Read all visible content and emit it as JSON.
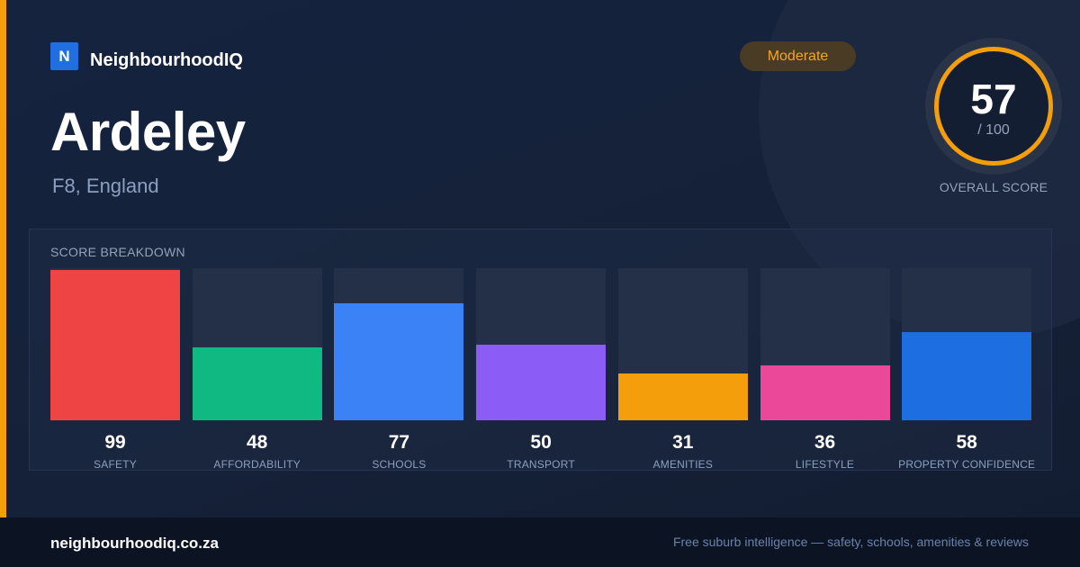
{
  "brand": {
    "logo_letter": "N",
    "name": "NeighbourhoodIQ"
  },
  "place": {
    "name": "Ardeley",
    "region": "F8, England"
  },
  "rating_badge": "Moderate",
  "overall": {
    "value": "57",
    "max": "/ 100",
    "label": "OVERALL SCORE",
    "ring_color": "#f59e0b"
  },
  "breakdown": {
    "title": "SCORE BREAKDOWN",
    "max": 100,
    "items": [
      {
        "label": "SAFETY",
        "value": 99,
        "value_text": "99",
        "color": "#ef4444"
      },
      {
        "label": "AFFORDABILITY",
        "value": 48,
        "value_text": "48",
        "color": "#10b981"
      },
      {
        "label": "SCHOOLS",
        "value": 77,
        "value_text": "77",
        "color": "#3b82f6"
      },
      {
        "label": "TRANSPORT",
        "value": 50,
        "value_text": "50",
        "color": "#8b5cf6"
      },
      {
        "label": "AMENITIES",
        "value": 31,
        "value_text": "31",
        "color": "#f59e0b"
      },
      {
        "label": "LIFESTYLE",
        "value": 36,
        "value_text": "36",
        "color": "#ec4899"
      },
      {
        "label": "PROPERTY CONFIDENCE",
        "value": 58,
        "value_text": "58",
        "color": "#1d6ee0"
      }
    ]
  },
  "footer": {
    "site": "neighbourhoodiq.co.za",
    "tagline": "Free suburb intelligence — safety, schools, amenities & reviews"
  },
  "colors": {
    "accent": "#f59e0b",
    "brand": "#1f6fe0",
    "background": "#152037"
  }
}
